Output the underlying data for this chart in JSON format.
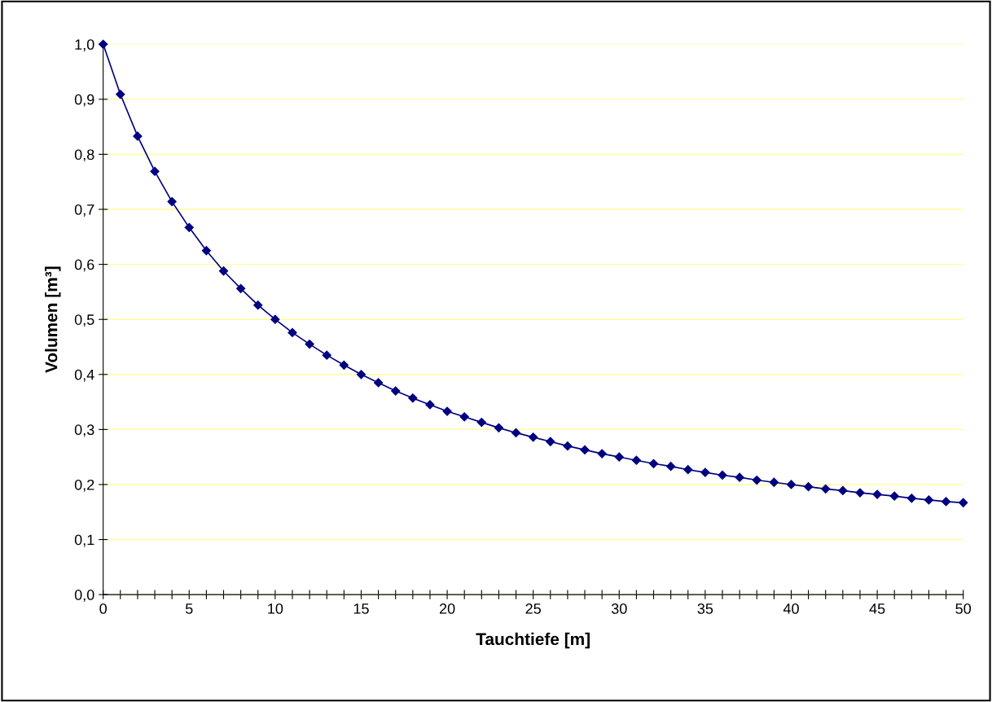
{
  "chart_data": {
    "type": "line",
    "xlabel": "Tauchtiefe [m]",
    "ylabel": "Volumen [m³]",
    "x": [
      0,
      1,
      2,
      3,
      4,
      5,
      6,
      7,
      8,
      9,
      10,
      11,
      12,
      13,
      14,
      15,
      16,
      17,
      18,
      19,
      20,
      21,
      22,
      23,
      24,
      25,
      26,
      27,
      28,
      29,
      30,
      31,
      32,
      33,
      34,
      35,
      36,
      37,
      38,
      39,
      40,
      41,
      42,
      43,
      44,
      45,
      46,
      47,
      48,
      49,
      50
    ],
    "series": [
      {
        "color": "#000080",
        "values": [
          1.0,
          0.909,
          0.833,
          0.769,
          0.714,
          0.667,
          0.625,
          0.588,
          0.556,
          0.526,
          0.5,
          0.476,
          0.455,
          0.435,
          0.417,
          0.4,
          0.385,
          0.37,
          0.357,
          0.345,
          0.333,
          0.323,
          0.313,
          0.303,
          0.294,
          0.286,
          0.278,
          0.27,
          0.263,
          0.256,
          0.25,
          0.244,
          0.238,
          0.233,
          0.227,
          0.222,
          0.217,
          0.213,
          0.208,
          0.204,
          0.2,
          0.196,
          0.192,
          0.189,
          0.185,
          0.182,
          0.179,
          0.175,
          0.172,
          0.169,
          0.167
        ]
      }
    ],
    "xlim": [
      0,
      50
    ],
    "xticks": [
      0,
      {
        "value": 1,
        "label": null
      },
      {
        "value": 2,
        "label": null
      },
      {
        "value": 3,
        "label": null
      },
      {
        "value": 4,
        "label": null
      },
      5,
      {
        "value": 6,
        "label": null
      },
      {
        "value": 7,
        "label": null
      },
      {
        "value": 8,
        "label": null
      },
      {
        "value": 9,
        "label": null
      },
      10,
      {
        "value": 11,
        "label": null
      },
      {
        "value": 12,
        "label": null
      },
      {
        "value": 13,
        "label": null
      },
      {
        "value": 14,
        "label": null
      },
      15,
      {
        "value": 16,
        "label": null
      },
      {
        "value": 17,
        "label": null
      },
      {
        "value": 18,
        "label": null
      },
      {
        "value": 19,
        "label": null
      },
      20,
      {
        "value": 21,
        "label": null
      },
      {
        "value": 22,
        "label": null
      },
      {
        "value": 23,
        "label": null
      },
      {
        "value": 24,
        "label": null
      },
      25,
      {
        "value": 26,
        "label": null
      },
      {
        "value": 27,
        "label": null
      },
      {
        "value": 28,
        "label": null
      },
      {
        "value": 29,
        "label": null
      },
      30,
      {
        "value": 31,
        "label": null
      },
      {
        "value": 32,
        "label": null
      },
      {
        "value": 33,
        "label": null
      },
      {
        "value": 34,
        "label": null
      },
      35,
      {
        "value": 36,
        "label": null
      },
      {
        "value": 37,
        "label": null
      },
      {
        "value": 38,
        "label": null
      },
      {
        "value": 39,
        "label": null
      },
      40,
      {
        "value": 41,
        "label": null
      },
      {
        "value": 42,
        "label": null
      },
      {
        "value": 43,
        "label": null
      },
      {
        "value": 44,
        "label": null
      },
      45,
      {
        "value": 46,
        "label": null
      },
      {
        "value": 47,
        "label": null
      },
      {
        "value": 48,
        "label": null
      },
      {
        "value": 49,
        "label": null
      },
      50
    ],
    "ylim": [
      0,
      1.0
    ],
    "yticks": [
      {
        "value": 0,
        "label": "0,0"
      },
      {
        "value": 0.1,
        "label": "0,1"
      },
      {
        "value": 0.2,
        "label": "0,2"
      },
      {
        "value": 0.3,
        "label": "0,3"
      },
      {
        "value": 0.4,
        "label": "0,4"
      },
      {
        "value": 0.5,
        "label": "0,5"
      },
      {
        "value": 0.6,
        "label": "0,6"
      },
      {
        "value": 0.7,
        "label": "0,7"
      },
      {
        "value": 0.8,
        "label": "0,8"
      },
      {
        "value": 0.9,
        "label": "0,9"
      },
      {
        "value": 1.0,
        "label": "1,0"
      }
    ],
    "grid": "y",
    "marker": "diamond",
    "line_style": "solid",
    "legend": false
  }
}
